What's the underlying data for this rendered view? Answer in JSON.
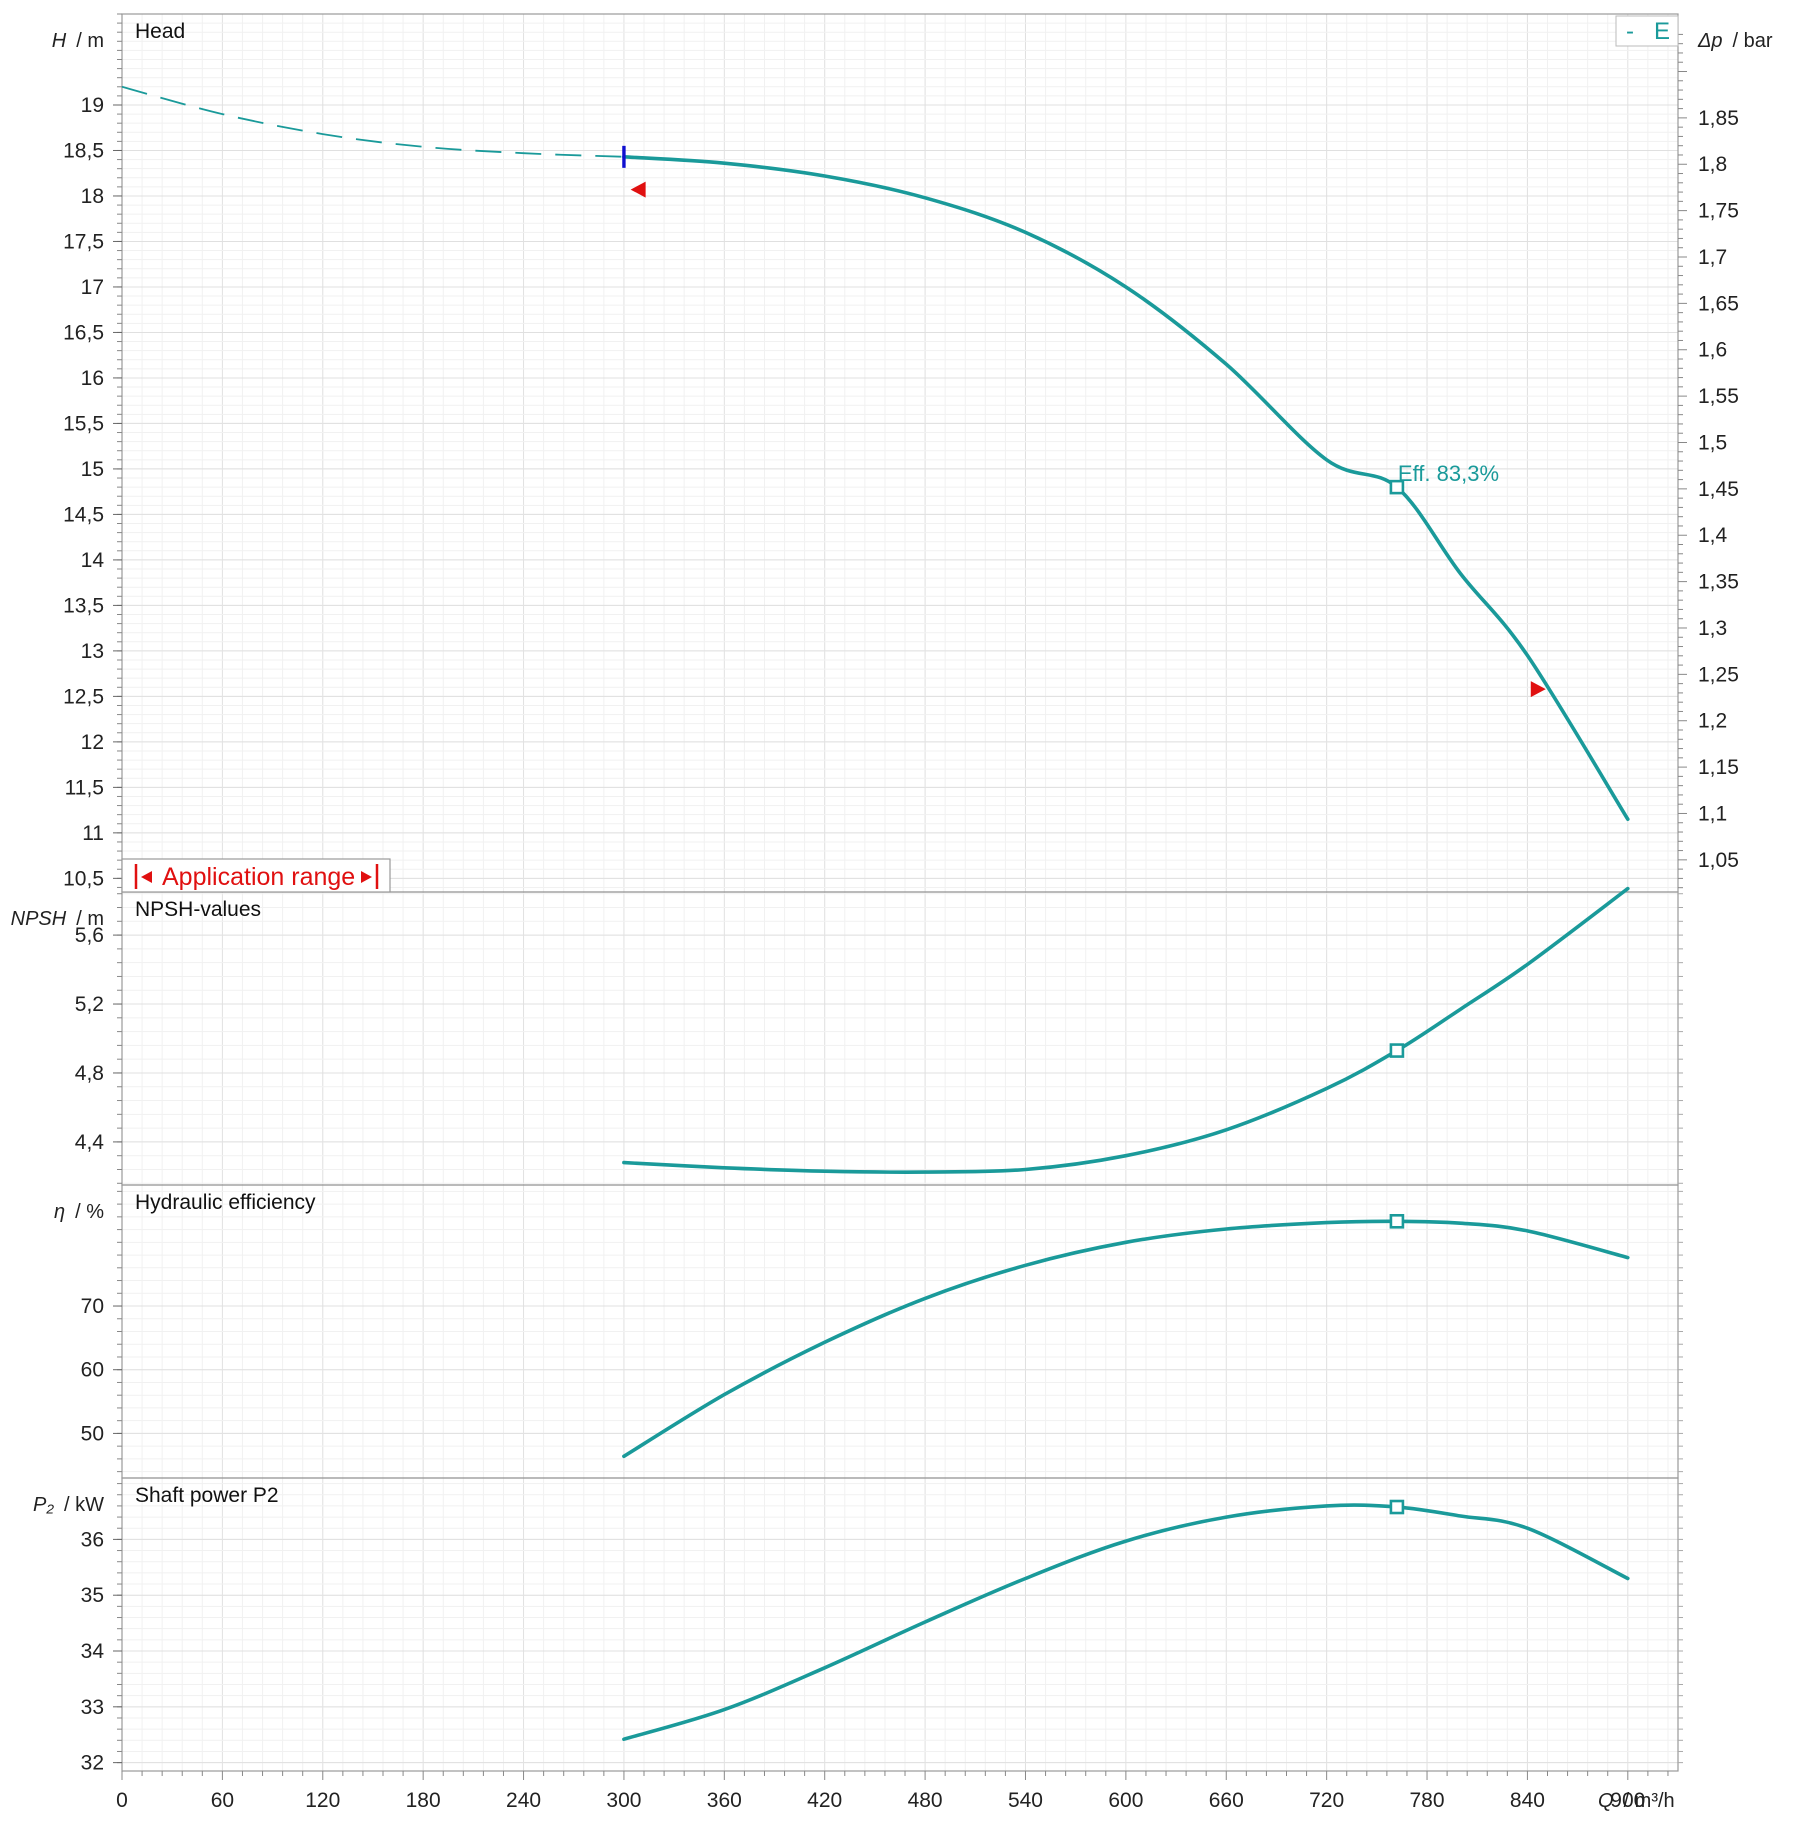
{
  "chart_data": {
    "type": "line",
    "colors": {
      "curve": "#1a9a9a",
      "marker_op": "#1a9a9a",
      "range": "#e01010",
      "start_mark": "#1010d0",
      "grid": "#e6e6e6",
      "frame": "#999999"
    },
    "x_axis": {
      "label_var": "Q",
      "label_unit": "/ m³/h",
      "lim": [
        0,
        930
      ],
      "ticks": [
        0,
        60,
        120,
        180,
        240,
        300,
        360,
        420,
        480,
        540,
        600,
        660,
        720,
        780,
        840,
        900
      ],
      "tick_labels": [
        "0",
        "60",
        "120",
        "180",
        "240",
        "300",
        "360",
        "420",
        "480",
        "540",
        "600",
        "660",
        "720",
        "780",
        "840",
        "900"
      ]
    },
    "legend": {
      "dash": "-",
      "letter": "E",
      "position": "top-right"
    },
    "operating_point_q": 762,
    "panels": [
      {
        "id": "head",
        "title": "Head",
        "ylabel_var": "H",
        "ylabel_unit": "/ m",
        "ylim": [
          10.35,
          20.0
        ],
        "yticks": [
          10.5,
          11,
          11.5,
          12,
          12.5,
          13,
          13.5,
          14,
          14.5,
          15,
          15.5,
          16,
          16.5,
          17,
          17.5,
          18,
          18.5,
          19
        ],
        "ytick_labels": [
          "10,5",
          "11",
          "11,5",
          "12",
          "12,5",
          "13",
          "13,5",
          "14",
          "14,5",
          "15",
          "15,5",
          "16",
          "16,5",
          "17",
          "17,5",
          "18",
          "18,5",
          "19"
        ],
        "y2label_var": "Δp",
        "y2label_unit": "/ bar",
        "y2_factor": 0.0981,
        "y2ticks": [
          1.05,
          1.1,
          1.15,
          1.2,
          1.25,
          1.3,
          1.35,
          1.4,
          1.45,
          1.5,
          1.55,
          1.6,
          1.65,
          1.7,
          1.75,
          1.8,
          1.85
        ],
        "y2tick_labels": [
          "1,05",
          "1,1",
          "1,15",
          "1,2",
          "1,25",
          "1,3",
          "1,35",
          "1,4",
          "1,45",
          "1,5",
          "1,55",
          "1,6",
          "1,65",
          "1,7",
          "1,75",
          "1,8",
          "1,85"
        ],
        "dashed_series": {
          "x": [
            0,
            60,
            120,
            180,
            240,
            300
          ],
          "y": [
            19.2,
            18.9,
            18.68,
            18.54,
            18.47,
            18.43
          ]
        },
        "series": {
          "x": [
            300,
            360,
            420,
            480,
            540,
            600,
            660,
            720,
            762,
            800,
            840,
            900
          ],
          "y": [
            18.43,
            18.36,
            18.22,
            17.98,
            17.6,
            17.0,
            16.15,
            15.1,
            14.8,
            13.85,
            12.95,
            11.15
          ]
        },
        "op_point": {
          "x": 762,
          "y": 14.8
        },
        "op_label": "Eff.  83,3%",
        "start_mark": {
          "x": 300,
          "y": 18.43
        },
        "range_markers": [
          {
            "x": 304,
            "y": 18.07,
            "dir": "left"
          },
          {
            "x": 842,
            "y": 12.58,
            "dir": "right"
          }
        ],
        "app_range_label": "Application range"
      },
      {
        "id": "npsh",
        "title": "NPSH-values",
        "ylabel_var": "NPSH",
        "ylabel_unit": "/ m",
        "ylim": [
          4.15,
          5.85
        ],
        "yticks": [
          4.4,
          4.8,
          5.2,
          5.6
        ],
        "ytick_labels": [
          "4,4",
          "4,8",
          "5,2",
          "5,6"
        ],
        "series": {
          "x": [
            300,
            360,
            420,
            480,
            540,
            600,
            660,
            720,
            762,
            800,
            840,
            900
          ],
          "y": [
            4.28,
            4.25,
            4.23,
            4.225,
            4.24,
            4.32,
            4.47,
            4.71,
            4.93,
            5.17,
            5.43,
            5.87
          ]
        },
        "op_point": {
          "x": 762,
          "y": 4.93
        }
      },
      {
        "id": "eff",
        "title": "Hydraulic efficiency",
        "ylabel_var": "η",
        "ylabel_unit": "/ %",
        "ylim": [
          43,
          89
        ],
        "yticks": [
          50,
          60,
          70
        ],
        "ytick_labels": [
          "50",
          "60",
          "70"
        ],
        "series": {
          "x": [
            300,
            360,
            420,
            480,
            540,
            600,
            660,
            720,
            762,
            800,
            840,
            900
          ],
          "y": [
            46.4,
            56.1,
            64.3,
            71.2,
            76.4,
            80.0,
            82.1,
            83.1,
            83.3,
            83.0,
            81.8,
            77.6
          ]
        },
        "op_point": {
          "x": 762,
          "y": 83.3
        }
      },
      {
        "id": "power",
        "title": "Shaft power P2",
        "ylabel_var": "P₂",
        "ylabel_unit": "/ kW",
        "ylim": [
          31.85,
          37.1
        ],
        "yticks": [
          32,
          33,
          34,
          35,
          36
        ],
        "ytick_labels": [
          "32",
          "33",
          "34",
          "35",
          "36"
        ],
        "series": {
          "x": [
            300,
            360,
            420,
            480,
            540,
            600,
            660,
            720,
            762,
            800,
            840,
            900
          ],
          "y": [
            32.42,
            32.95,
            33.7,
            34.52,
            35.3,
            35.97,
            36.4,
            36.6,
            36.58,
            36.42,
            36.2,
            35.3
          ]
        },
        "op_point": {
          "x": 762,
          "y": 36.58
        }
      }
    ]
  }
}
